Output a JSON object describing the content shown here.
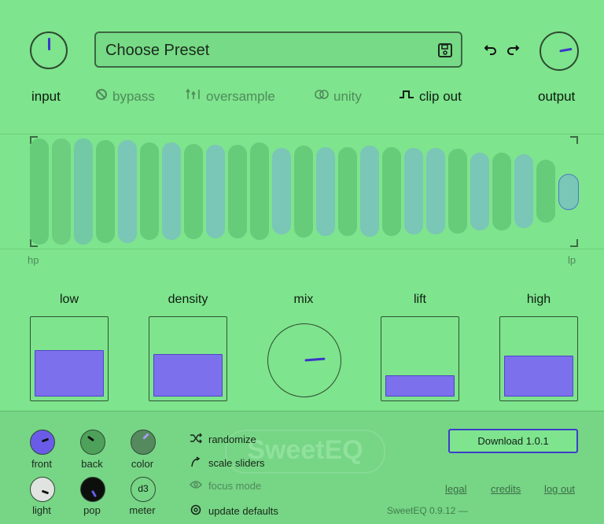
{
  "header": {
    "preset_label": "Choose Preset",
    "input_label": "input",
    "output_label": "output",
    "input_knob_value": 0.5,
    "output_knob_value": 0.72
  },
  "toolbar": {
    "bypass": "bypass",
    "oversample": "oversample",
    "unity": "unity",
    "clip_out": "clip out"
  },
  "visualizer": {
    "hp_label": "hp",
    "lp_label": "lp",
    "bars": [
      {
        "level": 0.98,
        "color": "#66cc7a"
      },
      {
        "level": 0.98,
        "color": "#6cce7e"
      },
      {
        "level": 0.98,
        "color": "#73c9a6"
      },
      {
        "level": 0.95,
        "color": "#66cc7a"
      },
      {
        "level": 0.95,
        "color": "#7ac6b7"
      },
      {
        "level": 0.9,
        "color": "#66cc7a"
      },
      {
        "level": 0.9,
        "color": "#7ac6b7"
      },
      {
        "level": 0.88,
        "color": "#66cc7a"
      },
      {
        "level": 0.86,
        "color": "#7ac6b7"
      },
      {
        "level": 0.86,
        "color": "#66cc7a"
      },
      {
        "level": 0.9,
        "color": "#66cc7a"
      },
      {
        "level": 0.8,
        "color": "#7ac6b7"
      },
      {
        "level": 0.85,
        "color": "#66cc7a"
      },
      {
        "level": 0.82,
        "color": "#7ac6b7"
      },
      {
        "level": 0.82,
        "color": "#66cc7a"
      },
      {
        "level": 0.84,
        "color": "#7ac6b7"
      },
      {
        "level": 0.82,
        "color": "#66cc7a"
      },
      {
        "level": 0.8,
        "color": "#7ac6b7"
      },
      {
        "level": 0.8,
        "color": "#7ac6b7"
      },
      {
        "level": 0.78,
        "color": "#66cc7a"
      },
      {
        "level": 0.72,
        "color": "#7ac6b7"
      },
      {
        "level": 0.72,
        "color": "#66cc7a"
      },
      {
        "level": 0.68,
        "color": "#7ac6b7"
      },
      {
        "level": 0.58,
        "color": "#66cc7a"
      },
      {
        "level": 0.32,
        "color": "#7ac6b7"
      }
    ]
  },
  "controls": {
    "low": {
      "label": "low",
      "value": 0.62
    },
    "density": {
      "label": "density",
      "value": 0.57
    },
    "mix": {
      "label": "mix",
      "value": 0.85
    },
    "lift": {
      "label": "lift",
      "value": 0.28
    },
    "high": {
      "label": "high",
      "value": 0.55
    }
  },
  "bottom": {
    "knobs": [
      {
        "label": "front"
      },
      {
        "label": "back"
      },
      {
        "label": "color"
      },
      {
        "label": "light"
      },
      {
        "label": "pop"
      },
      {
        "label": "meter",
        "badge": "d3"
      }
    ],
    "menu": {
      "randomize": "randomize",
      "scale_sliders": "scale sliders",
      "focus_mode": "focus mode",
      "update_defaults": "update defaults"
    },
    "download_label": "Download 1.0.1",
    "watermark": "SweetEQ",
    "legal": "legal",
    "credits": "credits",
    "log_out": "log out",
    "version": "SweetEQ 0.9.12 —"
  },
  "colors": {
    "background": "#7ee48d",
    "accent": "#3b36c9",
    "slider_fill": "#7c70ec"
  }
}
